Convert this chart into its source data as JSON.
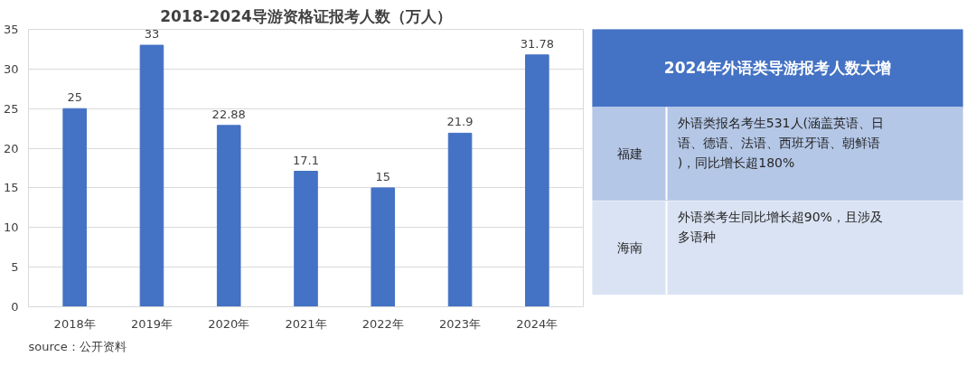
{
  "chart_data": [
    {
      "type": "bar",
      "title": "2018-2024导游资格证报考人数（万人）",
      "categories": [
        "2018年",
        "2019年",
        "2020年",
        "2021年",
        "2022年",
        "2023年",
        "2024年"
      ],
      "values": [
        25,
        33,
        22.88,
        17.1,
        15,
        21.9,
        31.78
      ],
      "color": "#4472c4",
      "ylim": [
        0,
        35
      ],
      "yticks": [
        0,
        5,
        10,
        15,
        20,
        25,
        30,
        35
      ],
      "grid": "y",
      "data_labels": true,
      "annotations": [
        "source：公开资料"
      ]
    },
    {
      "type": "other",
      "title": "2024年外语类导游报考人数大增",
      "annotations": [
        "福建",
        "外语类报名考生531人(涵盖英语、日语、德语、法语、西班牙语、朝鲜语)，同比增长超180%",
        "海南",
        "外语类考生同比增长超90%，且涉及多语种"
      ]
    }
  ]
}
